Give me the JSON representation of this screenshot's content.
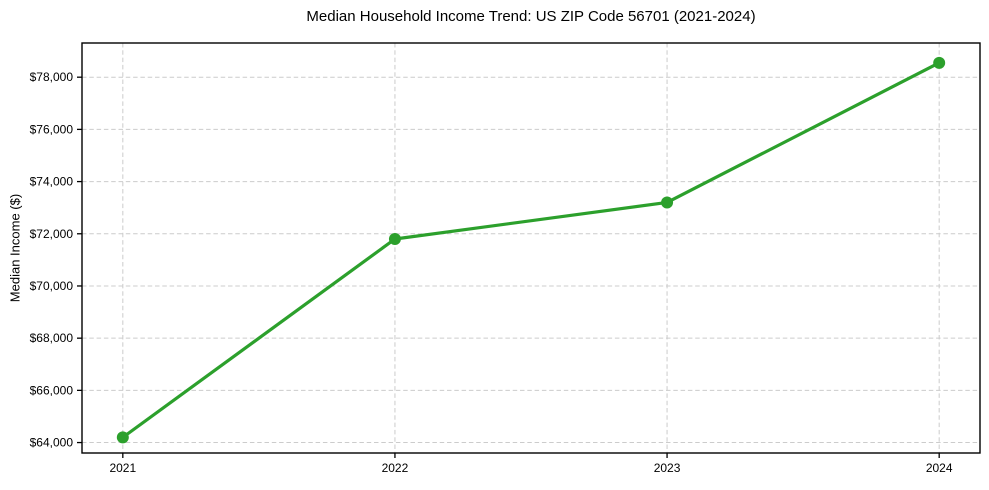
{
  "chart_data": {
    "type": "line",
    "title": "Median Household Income Trend: US ZIP Code 56701 (2021-2024)",
    "xlabel": "",
    "ylabel": "Median Income ($)",
    "categories": [
      "2021",
      "2022",
      "2023",
      "2024"
    ],
    "x": [
      2021,
      2022,
      2023,
      2024
    ],
    "series": [
      {
        "name": "Median household income",
        "values": [
          64200,
          71800,
          73200,
          78550
        ]
      }
    ],
    "y_ticks": [
      64000,
      66000,
      68000,
      70000,
      72000,
      74000,
      76000,
      78000
    ],
    "y_tick_labels": [
      "$64,000",
      "$66,000",
      "$68,000",
      "$70,000",
      "$72,000",
      "$74,000",
      "$76,000",
      "$78,000"
    ],
    "x_tick_labels": [
      "2021",
      "2022",
      "2023",
      "2024"
    ],
    "ylim": [
      63600,
      79310
    ],
    "xlim": [
      2020.85,
      2024.15
    ],
    "grid": true,
    "grid_style": "dashed",
    "legend": false,
    "colors": {
      "line": "#2ca02c",
      "marker": "#2ca02c",
      "grid": "#cccccc",
      "spine": "#000000",
      "text": "#000000",
      "background": "#ffffff"
    }
  }
}
